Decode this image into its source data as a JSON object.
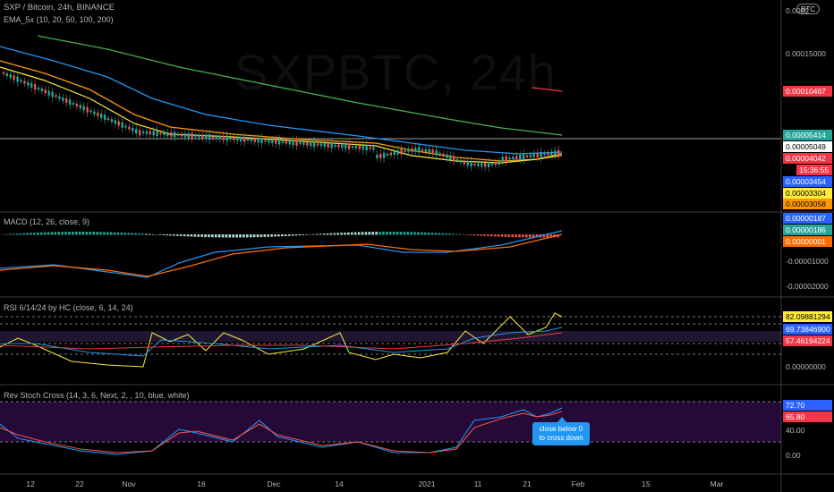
{
  "header": {
    "title": "SXP / Bitcoin, 24h, BINANCE",
    "ema_legend": "EMA_5x (10, 20, 50, 100, 200)",
    "watermark": "SXPBTC, 24h",
    "currency": "BTC"
  },
  "indicators": {
    "macd": "MACD (12, 26, close, 9)",
    "rsi": "RSI 6/14/24 by HC (close, 6, 14, 24)",
    "stoch": "Rev Stoch Cross (14, 3, 6, Next, 2, , 10, blue, white)"
  },
  "price_axis": {
    "labels": [
      "0.0002",
      "0.00015000",
      "0.00010467",
      "0.00005414",
      "0.00005049",
      "0.00004042",
      "15:36:55",
      "0.00003454",
      "0.00003304",
      "0.00003058"
    ],
    "tag_colors": [
      "#000000",
      "#000000",
      "#f23645",
      "#26a69a",
      "#ffffff",
      "#f23645",
      "#f23645",
      "#2962ff",
      "#ffeb3b",
      "#ff9800"
    ]
  },
  "macd_axis": {
    "labels": [
      "0.00000187",
      "0.00000186",
      "0.00000001",
      "-0.00001000",
      "-0.00002000"
    ],
    "tag_colors": [
      "#2962ff",
      "#26a69a",
      "#ff6d00",
      "#000000",
      "#000000"
    ]
  },
  "rsi_axis": {
    "labels": [
      "82.09881294",
      "69.73846900",
      "57.46194224",
      "0.00000000"
    ],
    "tag_colors": [
      "#ffeb3b",
      "#2962ff",
      "#f23645",
      "#000000"
    ]
  },
  "stoch_axis": {
    "labels": [
      "72.70",
      "65.80",
      "40.00",
      "0.00"
    ],
    "tag_colors": [
      "#2962ff",
      "#f23645",
      "#000000",
      "#000000"
    ]
  },
  "time_axis": [
    "12",
    "22",
    "Nov",
    "16",
    "Dec",
    "14",
    "2021",
    "11",
    "21",
    "Feb",
    "15",
    "Mar"
  ],
  "callout": {
    "line1": "close below 0",
    "line2": "to cross down"
  }
}
